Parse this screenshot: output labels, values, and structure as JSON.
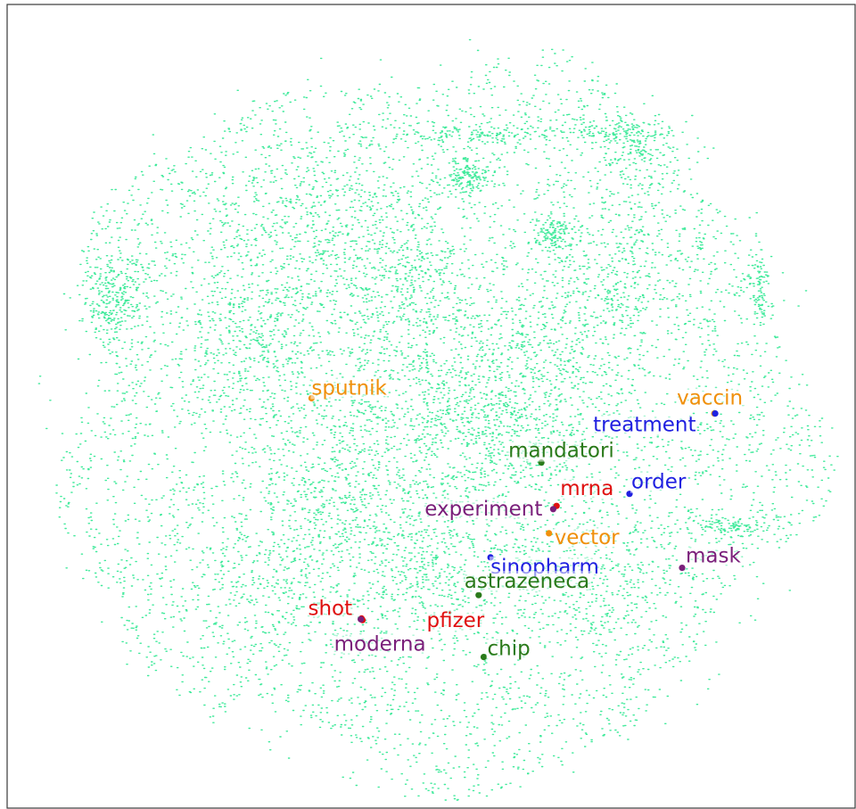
{
  "chart_data": {
    "type": "scatter",
    "xlim": [
      0,
      100
    ],
    "ylim": [
      0,
      100
    ],
    "grid": false,
    "axes_ticks": false,
    "background_cloud": {
      "color": "#00e37a",
      "point_count": 14000,
      "description_center": [
        47,
        47
      ]
    },
    "points": [
      {
        "label": "sputnik",
        "x": 35.9,
        "y": 51.0,
        "color": "#f0900c"
      },
      {
        "label": "vaccin",
        "x": 83.4,
        "y": 49.1,
        "color": "#f0900c"
      },
      {
        "label": "treatment",
        "x": 83.5,
        "y": 49.1,
        "color": "#2020e0"
      },
      {
        "label": "mandatori",
        "x": 63.0,
        "y": 43.0,
        "color": "#2a7a1a"
      },
      {
        "label": "order",
        "x": 73.4,
        "y": 39.1,
        "color": "#2020e0"
      },
      {
        "label": "mrna",
        "x": 64.8,
        "y": 37.6,
        "color": "#e01010"
      },
      {
        "label": "experiment",
        "x": 64.4,
        "y": 37.2,
        "color": "#7a1f7a"
      },
      {
        "label": "vector",
        "x": 63.9,
        "y": 34.2,
        "color": "#f0900c"
      },
      {
        "label": "sinopharm",
        "x": 57.0,
        "y": 31.2,
        "color": "#2020e0"
      },
      {
        "label": "mask",
        "x": 79.6,
        "y": 29.9,
        "color": "#7a1f7a"
      },
      {
        "label": "astrazeneca",
        "x": 55.6,
        "y": 26.5,
        "color": "#2a7a1a"
      },
      {
        "label": "shot",
        "x": 41.8,
        "y": 23.6,
        "color": "#e01010"
      },
      {
        "label": "pfizer",
        "x": 41.9,
        "y": 23.4,
        "color": "#e01010"
      },
      {
        "label": "moderna",
        "x": 41.7,
        "y": 23.5,
        "color": "#7a1f7a"
      },
      {
        "label": "chip",
        "x": 56.2,
        "y": 18.8,
        "color": "#2a7a1a"
      }
    ]
  }
}
